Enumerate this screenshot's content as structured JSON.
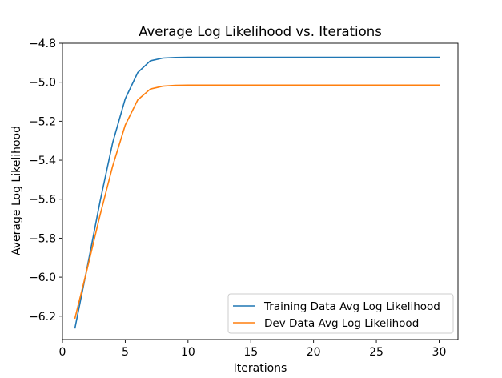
{
  "chart_data": {
    "type": "line",
    "title": "Average Log Likelihood vs. Iterations",
    "xlabel": "Iterations",
    "ylabel": "Average Log Likelihood",
    "xlim": [
      0,
      31.5
    ],
    "ylim": [
      -6.32,
      -4.8
    ],
    "xticks": [
      0,
      5,
      10,
      15,
      20,
      25,
      30
    ],
    "yticks": [
      -4.8,
      -5.0,
      -5.2,
      -5.4,
      -5.6,
      -5.8,
      -6.0,
      -6.2
    ],
    "ytick_labels": [
      "−4.8",
      "−5.0",
      "−5.2",
      "−5.4",
      "−5.6",
      "−5.8",
      "−6.0",
      "−6.2"
    ],
    "xtick_labels": [
      "0",
      "5",
      "10",
      "15",
      "20",
      "25",
      "30"
    ],
    "grid": false,
    "legend_position": "bottom-right",
    "x": [
      1,
      2,
      3,
      4,
      5,
      6,
      7,
      8,
      9,
      10,
      11,
      12,
      13,
      14,
      15,
      16,
      17,
      18,
      19,
      20,
      21,
      22,
      23,
      24,
      25,
      26,
      27,
      28,
      29,
      30
    ],
    "series": [
      {
        "name": "Training Data Avg Log Likelihood",
        "color": "#1f77b4",
        "values": [
          -6.26,
          -5.94,
          -5.61,
          -5.31,
          -5.085,
          -4.95,
          -4.89,
          -4.876,
          -4.873,
          -4.872,
          -4.872,
          -4.872,
          -4.872,
          -4.872,
          -4.872,
          -4.872,
          -4.872,
          -4.872,
          -4.872,
          -4.872,
          -4.872,
          -4.872,
          -4.872,
          -4.872,
          -4.872,
          -4.872,
          -4.872,
          -4.872,
          -4.872,
          -4.872
        ]
      },
      {
        "name": "Dev Data Avg Log Likelihood",
        "color": "#ff7f0e",
        "values": [
          -6.21,
          -5.95,
          -5.68,
          -5.43,
          -5.22,
          -5.09,
          -5.035,
          -5.02,
          -5.016,
          -5.015,
          -5.015,
          -5.015,
          -5.015,
          -5.015,
          -5.015,
          -5.015,
          -5.015,
          -5.015,
          -5.015,
          -5.015,
          -5.015,
          -5.015,
          -5.015,
          -5.015,
          -5.015,
          -5.015,
          -5.015,
          -5.015,
          -5.015,
          -5.015
        ]
      }
    ]
  }
}
